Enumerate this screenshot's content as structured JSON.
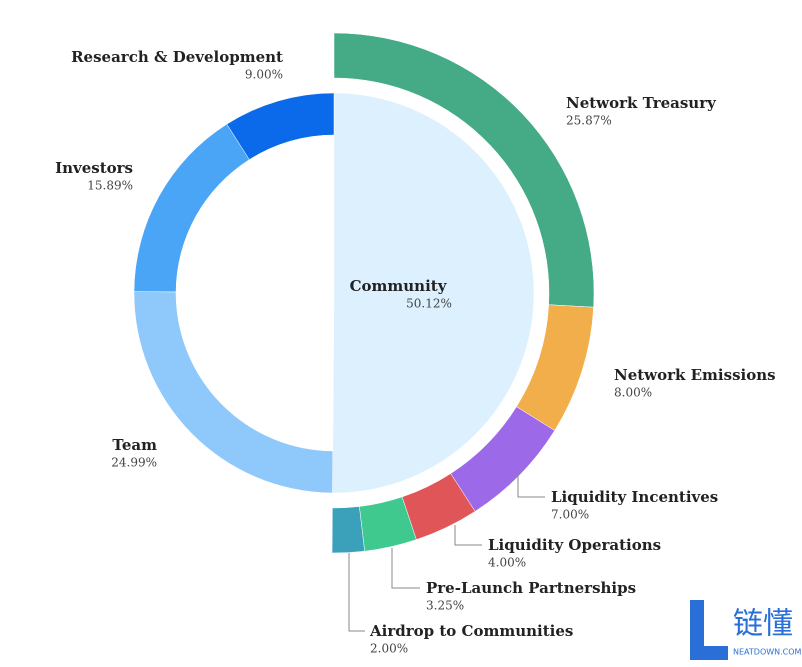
{
  "chart_data": {
    "type": "sunburst",
    "inner": {
      "categories": [
        "Community",
        "Team",
        "Investors",
        "Research & Development"
      ],
      "values": [
        50.12,
        24.99,
        15.89,
        9.0
      ],
      "value_labels": [
        "50.12%",
        "24.99%",
        "15.89%",
        "9.00%"
      ],
      "colors": [
        "#dcf0fd",
        "#8fc8fa",
        "#4ba5f6",
        "#0a6ae9"
      ]
    },
    "outer": {
      "categories": [
        "Network Treasury",
        "Network Emissions",
        "Liquidity Incentives",
        "Liquidity Operations",
        "Pre-Launch Partnerships",
        "Airdrop to Communities"
      ],
      "values": [
        25.87,
        8.0,
        7.0,
        4.0,
        3.25,
        2.0
      ],
      "value_labels": [
        "25.87%",
        "8.00%",
        "7.00%",
        "4.00%",
        "3.25%",
        "2.00%"
      ],
      "colors": [
        "#44ab86",
        "#f3ae4c",
        "#9c69e9",
        "#e05557",
        "#3fc98f",
        "#3ba0ba"
      ]
    }
  },
  "watermark": {
    "brand": "链懂",
    "site": "NEATDOWN.COM"
  }
}
